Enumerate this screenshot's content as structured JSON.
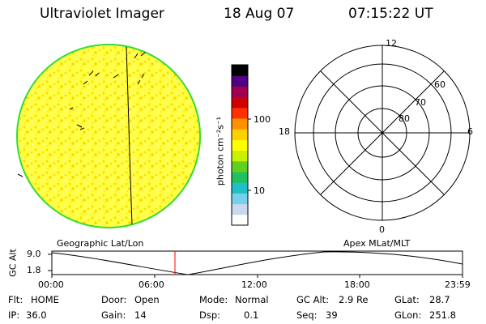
{
  "header": {
    "instrument": "Ultraviolet Imager",
    "date": "18 Aug 07",
    "time": "07:15:22 UT"
  },
  "colorbar": {
    "unit_label": "photon cm⁻²s⁻¹",
    "tick_100": "100",
    "tick_10": "10",
    "colors": [
      "#ffffff",
      "#c8d8ee",
      "#78d0e8",
      "#20c0c8",
      "#20c060",
      "#60d020",
      "#c8f000",
      "#ffff00",
      "#ffd000",
      "#ff9000",
      "#ff3000",
      "#d00000",
      "#a00050",
      "#500080",
      "#000000"
    ]
  },
  "geographic_panel": {
    "label": "Geographic Lat/Lon",
    "disk_color": "#ffff33",
    "limb_color": "#33dd33"
  },
  "polar_panel": {
    "label": "Apex MLat/MLT",
    "mlt_12": "12",
    "mlt_18": "18",
    "mlt_6": "6",
    "mlt_0": "0",
    "lat_60": "60",
    "lat_70": "70",
    "lat_80": "80"
  },
  "altitude_plot": {
    "axis_title": "GC Alt",
    "y_max": "9.0",
    "y_min": "1.8",
    "x_ticks": [
      "00:00",
      "06:00",
      "12:00",
      "18:00",
      "23:59"
    ],
    "current_time_marker_color": "#ff0000"
  },
  "status": {
    "flt_label": "Flt:",
    "flt_value": "HOME",
    "door_label": "Door:",
    "door_value": "Open",
    "mode_label": "Mode:",
    "mode_value": "Normal",
    "gcalt_label": "GC Alt:",
    "gcalt_value": "2.9 Re",
    "glat_label": "GLat:",
    "glat_value": "28.7",
    "ip_label": "IP:",
    "ip_value": "36.0",
    "gain_label": "Gain:",
    "gain_value": "14",
    "dsp_label": "Dsp:",
    "dsp_value": "0.1",
    "seq_label": "Seq:",
    "seq_value": "39",
    "glon_label": "GLon:",
    "glon_value": "251.8"
  }
}
